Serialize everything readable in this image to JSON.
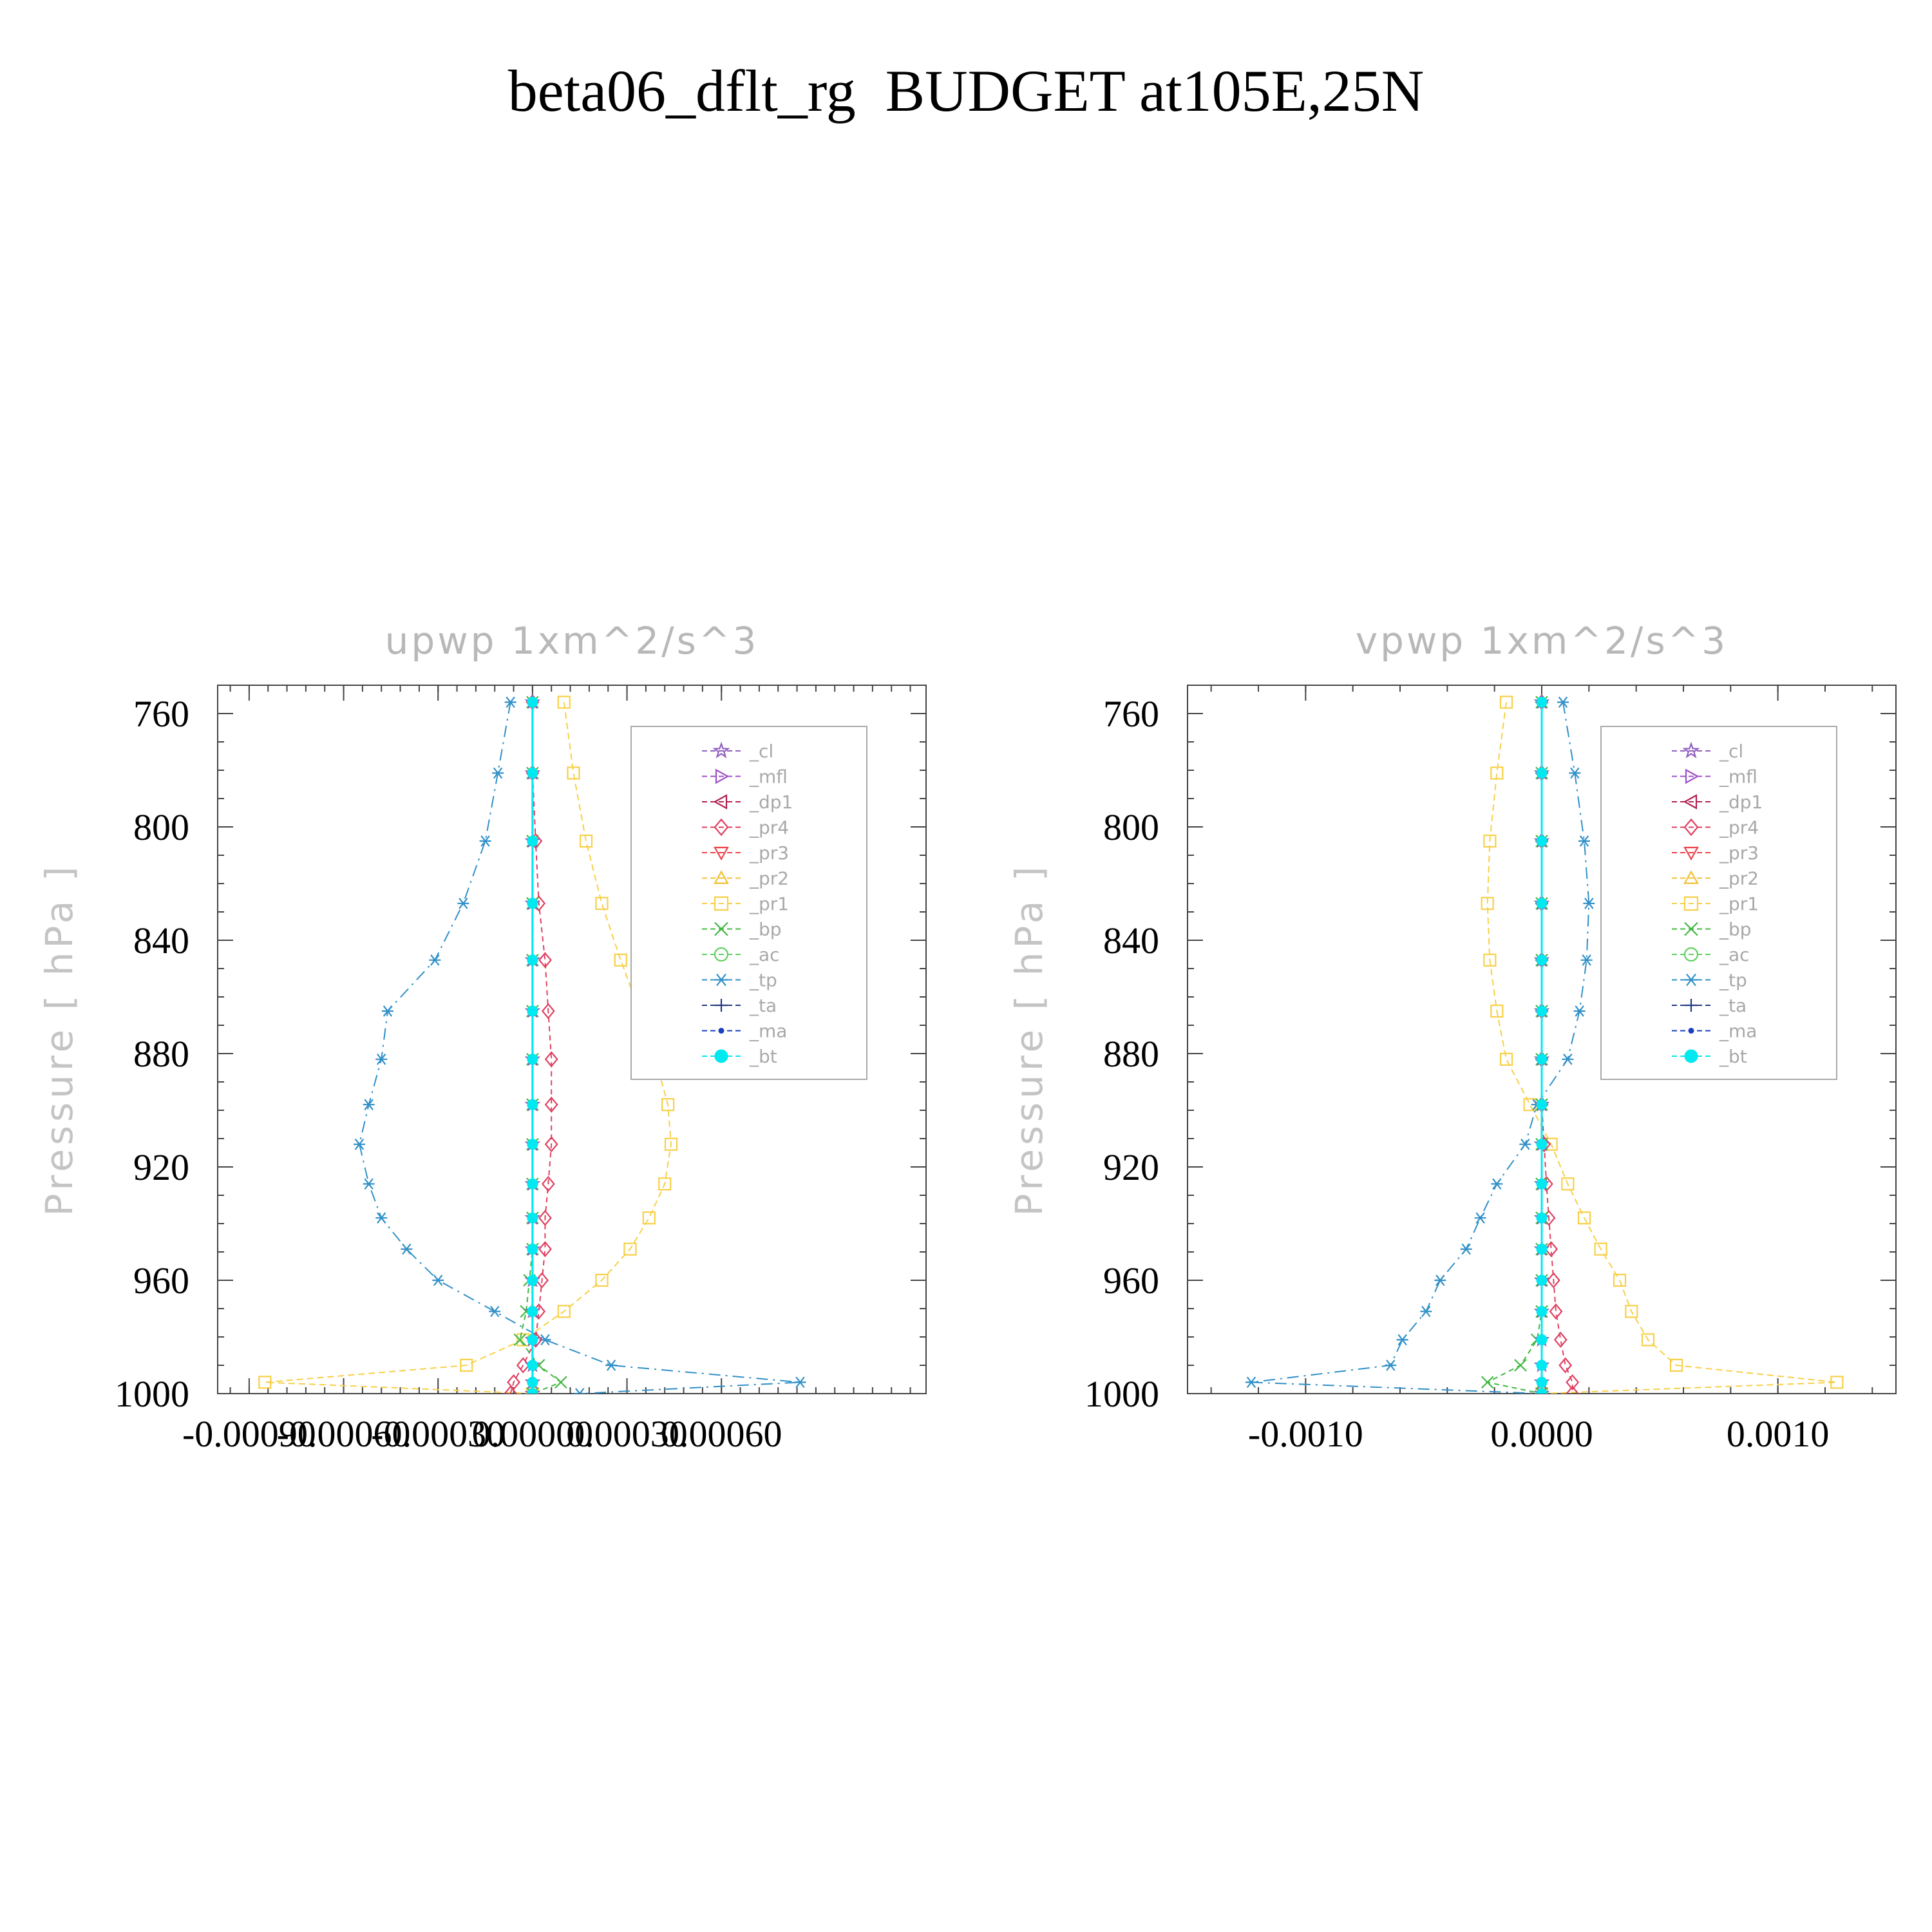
{
  "page": {
    "title": "beta06_dflt_rg  BUDGET at105E,25N"
  },
  "legend_entries": [
    {
      "name": "_cl",
      "color": "#9060c0",
      "marker": "star"
    },
    {
      "name": "_mfl",
      "color": "#a050c8",
      "marker": "tri-right"
    },
    {
      "name": "_dp1",
      "color": "#b02050",
      "marker": "tri-left"
    },
    {
      "name": "_pr4",
      "color": "#e04060",
      "marker": "diamond"
    },
    {
      "name": "_pr3",
      "color": "#f04048",
      "marker": "tri-down"
    },
    {
      "name": "_pr2",
      "color": "#f0c030",
      "marker": "tri-up"
    },
    {
      "name": "_pr1",
      "color": "#f8d048",
      "marker": "square"
    },
    {
      "name": "_bp",
      "color": "#40b840",
      "marker": "x"
    },
    {
      "name": "_ac",
      "color": "#60d060",
      "marker": "circle"
    },
    {
      "name": "_tp",
      "color": "#3090c8",
      "marker": "asterisk"
    },
    {
      "name": "_ta",
      "color": "#203880",
      "marker": "plus"
    },
    {
      "name": "_ma",
      "color": "#1840c0",
      "marker": "dot"
    },
    {
      "name": "_bt",
      "color": "#00e8f0",
      "marker": "filled-circle"
    }
  ],
  "chart_data": [
    {
      "type": "line",
      "title": "upwp    1xm^2/s^3",
      "ylabel": "Pressure  [ hPa ]",
      "ylim": [
        750,
        1000
      ],
      "y_reversed": true,
      "y_ticks": [
        760,
        800,
        840,
        880,
        920,
        960,
        1000
      ],
      "xlim": [
        -0.001,
        0.00125
      ],
      "x_ticks": [
        -0.0009,
        -0.0006,
        -0.0003,
        0.0,
        0.0003,
        0.0006
      ],
      "x_tick_labels": [
        "-0.00090",
        "-0.00060",
        "-0.00030",
        "0.00000",
        "0.00030",
        "0.00060"
      ],
      "legend_position": "upper right",
      "pressure_levels": [
        756,
        781,
        805,
        827,
        847,
        865,
        882,
        898,
        912,
        926,
        938,
        949,
        960,
        971,
        981,
        990,
        996,
        1000
      ],
      "series": [
        {
          "name": "_pr1",
          "values": [
            0.0001,
            0.00013,
            0.00017,
            0.00022,
            0.00028,
            0.00034,
            0.00039,
            0.00043,
            0.00044,
            0.00042,
            0.00037,
            0.00031,
            0.00022,
            0.0001,
            -3e-05,
            -0.00021,
            -0.00085,
            0.0
          ]
        },
        {
          "name": "_tp",
          "values": [
            -7e-05,
            -0.00011,
            -0.00015,
            -0.00022,
            -0.00031,
            -0.00046,
            -0.00048,
            -0.00052,
            -0.00055,
            -0.00052,
            -0.00048,
            -0.0004,
            -0.0003,
            -0.00012,
            4e-05,
            0.00025,
            0.00085,
            0.00015
          ]
        },
        {
          "name": "_pr4",
          "values": [
            0.0,
            0.0,
            1e-05,
            2e-05,
            4e-05,
            5e-05,
            6e-05,
            6e-05,
            6e-05,
            5e-05,
            4e-05,
            4e-05,
            3e-05,
            2e-05,
            1e-05,
            -3e-05,
            -6e-05,
            -7e-05
          ]
        },
        {
          "name": "_bp",
          "values": [
            0.0,
            0.0,
            0.0,
            0.0,
            0.0,
            0.0,
            0.0,
            0.0,
            0.0,
            0.0,
            0.0,
            0.0,
            -1e-05,
            -2e-05,
            -4e-05,
            2e-05,
            9e-05,
            0.0
          ]
        },
        {
          "name": "_cl",
          "values": [
            0.0,
            0.0,
            0.0,
            0.0,
            0.0,
            0.0,
            0.0,
            0.0,
            0.0,
            0.0,
            0.0,
            0.0,
            0.0,
            0.0,
            0.0,
            0.0,
            0.0,
            0.0
          ]
        },
        {
          "name": "_bt",
          "values": [
            0.0,
            0.0,
            0.0,
            0.0,
            0.0,
            0.0,
            0.0,
            0.0,
            0.0,
            0.0,
            0.0,
            0.0,
            0.0,
            0.0,
            0.0,
            0.0,
            0.0,
            0.0
          ]
        }
      ]
    },
    {
      "type": "line",
      "title": "vpwp    1xm^2/s^3",
      "ylabel": "Pressure  [ hPa ]",
      "ylim": [
        750,
        1000
      ],
      "y_reversed": true,
      "y_ticks": [
        760,
        800,
        840,
        880,
        920,
        960,
        1000
      ],
      "xlim": [
        -0.0015,
        0.0015
      ],
      "x_ticks": [
        -0.001,
        0.0,
        0.001
      ],
      "x_tick_labels": [
        "-0.0010",
        "0.0000",
        "0.0010"
      ],
      "legend_position": "upper right",
      "pressure_levels": [
        756,
        781,
        805,
        827,
        847,
        865,
        882,
        898,
        912,
        926,
        938,
        949,
        960,
        971,
        981,
        990,
        996,
        1000
      ],
      "series": [
        {
          "name": "_pr1",
          "values": [
            -0.00015,
            -0.00019,
            -0.00022,
            -0.00023,
            -0.00022,
            -0.00019,
            -0.00015,
            -5e-05,
            4e-05,
            0.00011,
            0.00018,
            0.00025,
            0.00033,
            0.00038,
            0.00045,
            0.00057,
            0.00125,
            0.0
          ]
        },
        {
          "name": "_tp",
          "values": [
            9e-05,
            0.00014,
            0.00018,
            0.0002,
            0.00019,
            0.00016,
            0.00011,
            -2e-05,
            -7e-05,
            -0.00019,
            -0.00026,
            -0.00032,
            -0.00043,
            -0.00049,
            -0.00059,
            -0.00064,
            -0.00123,
            0.0
          ]
        },
        {
          "name": "_pr4",
          "values": [
            0.0,
            0.0,
            0.0,
            0.0,
            0.0,
            0.0,
            0.0,
            0.0,
            1e-05,
            2e-05,
            3e-05,
            4e-05,
            5e-05,
            6e-05,
            8e-05,
            0.0001,
            0.00013,
            0.00013
          ]
        },
        {
          "name": "_bp",
          "values": [
            0.0,
            0.0,
            0.0,
            0.0,
            0.0,
            0.0,
            0.0,
            0.0,
            0.0,
            0.0,
            0.0,
            0.0,
            0.0,
            0.0,
            -2e-05,
            -9e-05,
            -0.00023,
            0.0
          ]
        },
        {
          "name": "_cl",
          "values": [
            0.0,
            0.0,
            0.0,
            0.0,
            0.0,
            0.0,
            0.0,
            0.0,
            0.0,
            0.0,
            0.0,
            0.0,
            0.0,
            0.0,
            0.0,
            0.0,
            0.0,
            0.0
          ]
        },
        {
          "name": "_bt",
          "values": [
            0.0,
            0.0,
            0.0,
            0.0,
            0.0,
            0.0,
            0.0,
            0.0,
            0.0,
            0.0,
            0.0,
            0.0,
            0.0,
            0.0,
            0.0,
            0.0,
            0.0,
            0.0
          ]
        }
      ]
    }
  ]
}
